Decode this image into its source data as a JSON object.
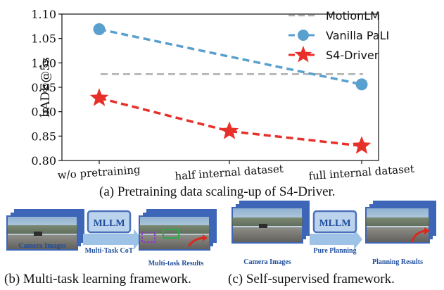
{
  "chart_data": {
    "type": "line",
    "categories": [
      "w/o pretraining",
      "half internal dataset",
      "full internal dataset"
    ],
    "ylabel": "bADE@5s",
    "ylim": [
      0.8,
      1.1
    ],
    "yticks": [
      "0.80",
      "0.85",
      "0.90",
      "0.95",
      "1.00",
      "1.05",
      "1.10"
    ],
    "ytick_values": [
      0.8,
      0.85,
      0.9,
      0.95,
      1.0,
      1.05,
      1.1
    ],
    "legend_position": "top-right",
    "series": [
      {
        "name": "MotionLM",
        "values": [
          0.977,
          0.977,
          0.977
        ],
        "color": "#b0b0b0",
        "marker": "none",
        "style": "dashed"
      },
      {
        "name": "Vanilla PaLI",
        "values": [
          1.069,
          null,
          0.956
        ],
        "color": "#5aa0cf",
        "marker": "circle",
        "style": "dashed"
      },
      {
        "name": "S4-Driver",
        "values": [
          0.928,
          0.86,
          0.83
        ],
        "color": "#e8302a",
        "marker": "star",
        "style": "dashed"
      }
    ]
  },
  "captions": {
    "a": "(a) Pretraining data scaling-up of S4-Driver.",
    "b": "(b) Multi-task learning framework.",
    "c": "(c) Self-supervised framework."
  },
  "diagram_b": {
    "input_label": "Camera Images",
    "model_label": "MLLM",
    "arrow_label": "Multi-Task CoT",
    "output_label": "Multi-task Results"
  },
  "diagram_c": {
    "input_label": "Camera Images",
    "model_label": "MLLM",
    "arrow_label": "Pure Planning",
    "output_label": "Planning Results"
  },
  "colors": {
    "mllm_fill": "#bcd3ee",
    "mllm_border": "#4a72b8",
    "label_text": "#1f4e9c",
    "arrow_fill": "#9fc2e7"
  }
}
